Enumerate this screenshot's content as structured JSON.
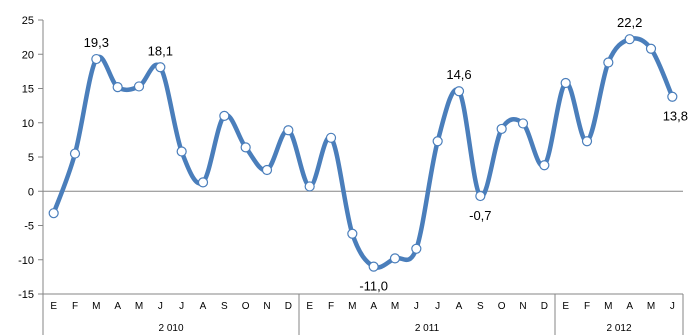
{
  "chart_data": {
    "type": "line",
    "title": "",
    "xlabel": "",
    "ylabel": "",
    "ylim": [
      -15,
      25
    ],
    "y_ticks": [
      25,
      20,
      15,
      10,
      5,
      0,
      -5,
      -10,
      -15
    ],
    "y_tick_labels": [
      "25",
      "20",
      "15",
      "10",
      "5",
      "0",
      "-5",
      "-10",
      "-15"
    ],
    "grid": false,
    "legend": "none",
    "series_color": "#4a7ebb",
    "marker_fill": "#ffffff",
    "months": [
      "E",
      "F",
      "M",
      "A",
      "M",
      "J",
      "J",
      "A",
      "S",
      "O",
      "N",
      "D",
      "E",
      "F",
      "M",
      "A",
      "M",
      "J",
      "J",
      "A",
      "S",
      "O",
      "N",
      "D",
      "E",
      "F",
      "M",
      "A",
      "M",
      "J"
    ],
    "years": [
      {
        "label": "2 010",
        "count": 12
      },
      {
        "label": "2 011",
        "count": 12
      },
      {
        "label": "2 012",
        "count": 6
      }
    ],
    "series": [
      {
        "values": [
          -3.2,
          5.5,
          19.3,
          15.2,
          15.3,
          18.1,
          5.8,
          1.3,
          11.0,
          6.4,
          3.1,
          8.9,
          0.7,
          7.8,
          -6.2,
          -11.0,
          -9.8,
          -8.4,
          7.3,
          14.6,
          -0.7,
          9.1,
          9.9,
          3.8,
          15.8,
          7.3,
          18.8,
          22.2,
          20.8,
          13.8
        ]
      }
    ],
    "data_labels": [
      {
        "index": 2,
        "text": "19,3",
        "position": "above"
      },
      {
        "index": 5,
        "text": "18,1",
        "position": "above"
      },
      {
        "index": 15,
        "text": "-11,0",
        "position": "below"
      },
      {
        "index": 19,
        "text": "14,6",
        "position": "above"
      },
      {
        "index": 20,
        "text": "-0,7",
        "position": "below"
      },
      {
        "index": 27,
        "text": "22,2",
        "position": "above"
      },
      {
        "index": 29,
        "text": "13,8",
        "position": "below"
      }
    ]
  }
}
